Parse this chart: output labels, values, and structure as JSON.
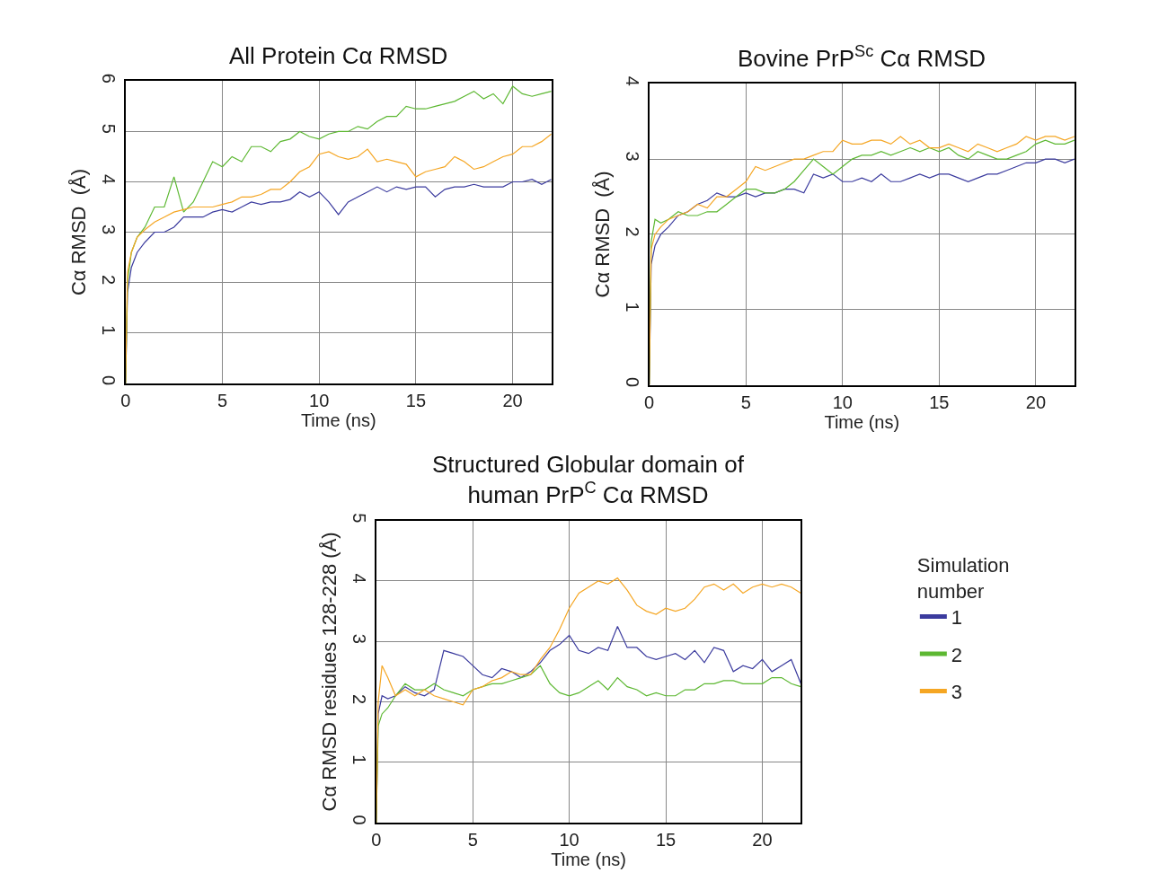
{
  "chart_data": [
    {
      "type": "line",
      "title": "All Protein Cα RMSD",
      "xlabel": "Time (ns)",
      "ylabel": "Cα RMSD  (Å)",
      "x": [
        0,
        0.1,
        0.3,
        0.6,
        1,
        1.5,
        2,
        2.5,
        3,
        3.5,
        4,
        4.5,
        5,
        5.5,
        6,
        6.5,
        7,
        7.5,
        8,
        8.5,
        9,
        9.5,
        10,
        10.5,
        11,
        11.5,
        12,
        12.5,
        13,
        13.5,
        14,
        14.5,
        15,
        15.5,
        16,
        16.5,
        17,
        17.5,
        18,
        18.5,
        19,
        19.5,
        20,
        20.5,
        21,
        21.5,
        22
      ],
      "series": [
        {
          "color": "#3b3b9e",
          "values": [
            0,
            1.8,
            2.3,
            2.6,
            2.8,
            3.0,
            3.0,
            3.1,
            3.3,
            3.3,
            3.3,
            3.4,
            3.45,
            3.4,
            3.5,
            3.6,
            3.55,
            3.6,
            3.6,
            3.65,
            3.8,
            3.7,
            3.8,
            3.6,
            3.35,
            3.6,
            3.7,
            3.8,
            3.9,
            3.8,
            3.9,
            3.85,
            3.9,
            3.9,
            3.7,
            3.85,
            3.9,
            3.9,
            3.95,
            3.9,
            3.9,
            3.9,
            4.0,
            4.0,
            4.05,
            3.95,
            4.05
          ]
        },
        {
          "color": "#5db832",
          "values": [
            0,
            2.0,
            2.6,
            2.9,
            3.1,
            3.5,
            3.5,
            4.1,
            3.4,
            3.6,
            4.0,
            4.4,
            4.3,
            4.5,
            4.4,
            4.7,
            4.7,
            4.6,
            4.8,
            4.85,
            5.0,
            4.9,
            4.85,
            4.95,
            5.0,
            5.0,
            5.1,
            5.05,
            5.2,
            5.3,
            5.3,
            5.5,
            5.45,
            5.45,
            5.5,
            5.55,
            5.6,
            5.7,
            5.8,
            5.65,
            5.75,
            5.55,
            5.9,
            5.75,
            5.7,
            5.75,
            5.8
          ]
        },
        {
          "color": "#f5a623",
          "values": [
            0,
            2.2,
            2.6,
            2.9,
            3.05,
            3.2,
            3.3,
            3.4,
            3.45,
            3.5,
            3.5,
            3.5,
            3.55,
            3.6,
            3.7,
            3.7,
            3.75,
            3.85,
            3.85,
            4.0,
            4.2,
            4.3,
            4.55,
            4.6,
            4.5,
            4.45,
            4.5,
            4.65,
            4.4,
            4.45,
            4.4,
            4.35,
            4.1,
            4.2,
            4.25,
            4.3,
            4.5,
            4.4,
            4.25,
            4.3,
            4.4,
            4.5,
            4.55,
            4.7,
            4.7,
            4.8,
            4.95
          ]
        }
      ],
      "xlim": [
        0,
        22
      ],
      "xticks": [
        0,
        5,
        10,
        15,
        20
      ],
      "ylim": [
        0,
        6
      ],
      "yticks": [
        0,
        1,
        2,
        3,
        4,
        5,
        6
      ],
      "grid": true
    },
    {
      "type": "line",
      "title": "Bovine PrP$^{Sc}$ Cα RMSD",
      "xlabel": "Time (ns)",
      "ylabel": "Cα RMSD  (Å)",
      "x": [
        0,
        0.1,
        0.3,
        0.6,
        1,
        1.5,
        2,
        2.5,
        3,
        3.5,
        4,
        4.5,
        5,
        5.5,
        6,
        6.5,
        7,
        7.5,
        8,
        8.5,
        9,
        9.5,
        10,
        10.5,
        11,
        11.5,
        12,
        12.5,
        13,
        13.5,
        14,
        14.5,
        15,
        15.5,
        16,
        16.5,
        17,
        17.5,
        18,
        18.5,
        19,
        19.5,
        20,
        20.5,
        21,
        21.5,
        22
      ],
      "series": [
        {
          "color": "#3b3b9e",
          "values": [
            0,
            1.6,
            1.85,
            2.0,
            2.1,
            2.25,
            2.3,
            2.4,
            2.45,
            2.55,
            2.5,
            2.5,
            2.55,
            2.5,
            2.55,
            2.55,
            2.6,
            2.6,
            2.55,
            2.8,
            2.75,
            2.8,
            2.7,
            2.7,
            2.75,
            2.7,
            2.8,
            2.7,
            2.7,
            2.75,
            2.8,
            2.75,
            2.8,
            2.8,
            2.75,
            2.7,
            2.75,
            2.8,
            2.8,
            2.85,
            2.9,
            2.95,
            2.95,
            3.0,
            3.0,
            2.95,
            3.0
          ]
        },
        {
          "color": "#5db832",
          "values": [
            0,
            1.9,
            2.2,
            2.15,
            2.2,
            2.3,
            2.25,
            2.25,
            2.3,
            2.3,
            2.4,
            2.5,
            2.6,
            2.6,
            2.55,
            2.55,
            2.6,
            2.7,
            2.85,
            3.0,
            2.9,
            2.8,
            2.9,
            3.0,
            3.05,
            3.05,
            3.1,
            3.05,
            3.1,
            3.15,
            3.1,
            3.15,
            3.1,
            3.15,
            3.05,
            3.0,
            3.1,
            3.05,
            3.0,
            3.0,
            3.05,
            3.1,
            3.2,
            3.25,
            3.2,
            3.2,
            3.25
          ]
        },
        {
          "color": "#f5a623",
          "values": [
            0,
            1.8,
            2.0,
            2.1,
            2.2,
            2.25,
            2.3,
            2.4,
            2.35,
            2.5,
            2.5,
            2.6,
            2.7,
            2.9,
            2.85,
            2.9,
            2.95,
            3.0,
            3.0,
            3.05,
            3.1,
            3.1,
            3.25,
            3.2,
            3.2,
            3.25,
            3.25,
            3.2,
            3.3,
            3.2,
            3.25,
            3.15,
            3.15,
            3.2,
            3.15,
            3.1,
            3.2,
            3.15,
            3.1,
            3.15,
            3.2,
            3.3,
            3.25,
            3.3,
            3.3,
            3.25,
            3.3
          ]
        }
      ],
      "xlim": [
        0,
        22
      ],
      "xticks": [
        0,
        5,
        10,
        15,
        20
      ],
      "ylim": [
        0,
        4
      ],
      "yticks": [
        0,
        1,
        2,
        3,
        4
      ],
      "grid": true
    },
    {
      "type": "line",
      "title": "Structured Globular domain of\nhuman PrP$^{C}$ Cα RMSD",
      "xlabel": "Time (ns)",
      "ylabel": "Cα RMSD residues 128-228 (Å)",
      "legend_title": "Simulation\nnumber",
      "legend": "right",
      "x": [
        0,
        0.1,
        0.3,
        0.6,
        1,
        1.5,
        2,
        2.5,
        3,
        3.5,
        4,
        4.5,
        5,
        5.5,
        6,
        6.5,
        7,
        7.5,
        8,
        8.5,
        9,
        9.5,
        10,
        10.5,
        11,
        11.5,
        12,
        12.5,
        13,
        13.5,
        14,
        14.5,
        15,
        15.5,
        16,
        16.5,
        17,
        17.5,
        18,
        18.5,
        19,
        19.5,
        20,
        20.5,
        21,
        21.5,
        22
      ],
      "series": [
        {
          "name": "1",
          "color": "#3b3b9e",
          "values": [
            0,
            1.8,
            2.1,
            2.05,
            2.1,
            2.25,
            2.15,
            2.1,
            2.2,
            2.85,
            2.8,
            2.75,
            2.6,
            2.45,
            2.4,
            2.55,
            2.5,
            2.4,
            2.5,
            2.65,
            2.85,
            2.95,
            3.1,
            2.85,
            2.8,
            2.9,
            2.85,
            3.25,
            2.9,
            2.9,
            2.75,
            2.7,
            2.75,
            2.8,
            2.7,
            2.85,
            2.65,
            2.9,
            2.85,
            2.5,
            2.6,
            2.55,
            2.7,
            2.5,
            2.6,
            2.7,
            2.3
          ]
        },
        {
          "name": "2",
          "color": "#5db832",
          "values": [
            0,
            1.6,
            1.8,
            1.9,
            2.1,
            2.3,
            2.2,
            2.2,
            2.3,
            2.2,
            2.15,
            2.1,
            2.2,
            2.25,
            2.3,
            2.3,
            2.35,
            2.4,
            2.45,
            2.6,
            2.3,
            2.15,
            2.1,
            2.15,
            2.25,
            2.35,
            2.2,
            2.4,
            2.25,
            2.2,
            2.1,
            2.15,
            2.1,
            2.1,
            2.2,
            2.2,
            2.3,
            2.3,
            2.35,
            2.35,
            2.3,
            2.3,
            2.3,
            2.4,
            2.4,
            2.3,
            2.25
          ]
        },
        {
          "name": "3",
          "color": "#f5a623",
          "values": [
            0,
            2.0,
            2.6,
            2.4,
            2.1,
            2.2,
            2.1,
            2.2,
            2.1,
            2.05,
            2.0,
            1.95,
            2.2,
            2.25,
            2.35,
            2.4,
            2.5,
            2.45,
            2.45,
            2.7,
            2.9,
            3.2,
            3.55,
            3.8,
            3.9,
            4.0,
            3.95,
            4.05,
            3.85,
            3.6,
            3.5,
            3.45,
            3.55,
            3.5,
            3.55,
            3.7,
            3.9,
            3.95,
            3.85,
            3.95,
            3.8,
            3.9,
            3.95,
            3.9,
            3.95,
            3.9,
            3.8
          ]
        }
      ],
      "xlim": [
        0,
        22
      ],
      "xticks": [
        0,
        5,
        10,
        15,
        20
      ],
      "ylim": [
        0,
        5
      ],
      "yticks": [
        0,
        1,
        2,
        3,
        4,
        5
      ],
      "grid": true
    }
  ]
}
